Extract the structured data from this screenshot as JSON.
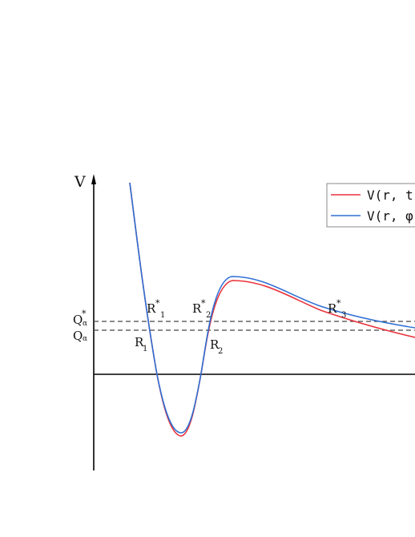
{
  "colors": {
    "axis": "#000000",
    "curve_red": "#e8343c",
    "curve_blue": "#2e6fd4",
    "dashed": "#444444",
    "legend_border": "#888888"
  },
  "axis": {
    "y_label": "V"
  },
  "levels": {
    "upper_label_main": "Q",
    "upper_label_sup": "*",
    "upper_label_sub": "α",
    "lower_label_main": "Q",
    "lower_label_sub": "α"
  },
  "points": {
    "r1_star_main": "R",
    "r1_star_sup": "*",
    "r1_star_sub": "1",
    "r1_main": "R",
    "r1_sub": "1",
    "r2_star_main": "R",
    "r2_star_sup": "*",
    "r2_star_sub": "2",
    "r2_main": "R",
    "r2_sub": "2",
    "r3_star_main": "R",
    "r3_star_sup": "*",
    "r3_star_sub": "3"
  },
  "legend": {
    "red_label": "V(r, t,",
    "blue_label": "V(r, φ)"
  }
}
